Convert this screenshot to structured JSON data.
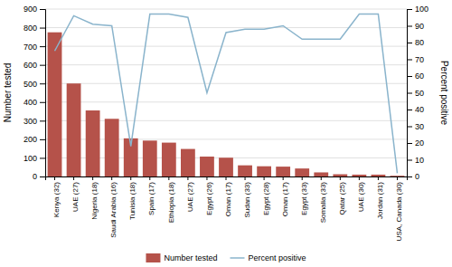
{
  "chart_data": {
    "type": "bar",
    "categories": [
      "Kenya (32)",
      "UAE (27)",
      "Nigeria (18)",
      "Saudi Arabia (16)",
      "Tunisia (18)",
      "Spain (17)",
      "Ethiopia (18)",
      "UAE (27)",
      "Egypt (26)",
      "Oman (17)",
      "Sudan (33)",
      "Egypt (28)",
      "Oman (17)",
      "Egypt (33)",
      "Somalia (33)",
      "Qatar (25)",
      "UAE (30)",
      "Jordan (31)",
      "USA, Canada (30)"
    ],
    "series": [
      {
        "name": "Number tested",
        "type": "bar",
        "color": "#b5524a",
        "values": [
          775,
          500,
          355,
          310,
          205,
          193,
          182,
          148,
          107,
          101,
          60,
          55,
          53,
          43,
          22,
          12,
          10,
          10,
          4
        ]
      },
      {
        "name": "Percent positive",
        "type": "line",
        "axis": "y2",
        "color": "#8ab4cc",
        "values": [
          75,
          96,
          91,
          90,
          18,
          97,
          97,
          95,
          50,
          86,
          88,
          88,
          90,
          82,
          82,
          82,
          97,
          97,
          2
        ]
      }
    ],
    "ylabel": "Number tested",
    "y2label": "Percent positive",
    "ylim": [
      0,
      900
    ],
    "yticks": [
      0,
      100,
      200,
      300,
      400,
      500,
      600,
      700,
      800,
      900
    ],
    "y2lim": [
      0,
      100
    ],
    "y2ticks": [
      0,
      10,
      20,
      30,
      40,
      50,
      60,
      70,
      80,
      90,
      100
    ],
    "grid": true,
    "legend": "bottom"
  }
}
